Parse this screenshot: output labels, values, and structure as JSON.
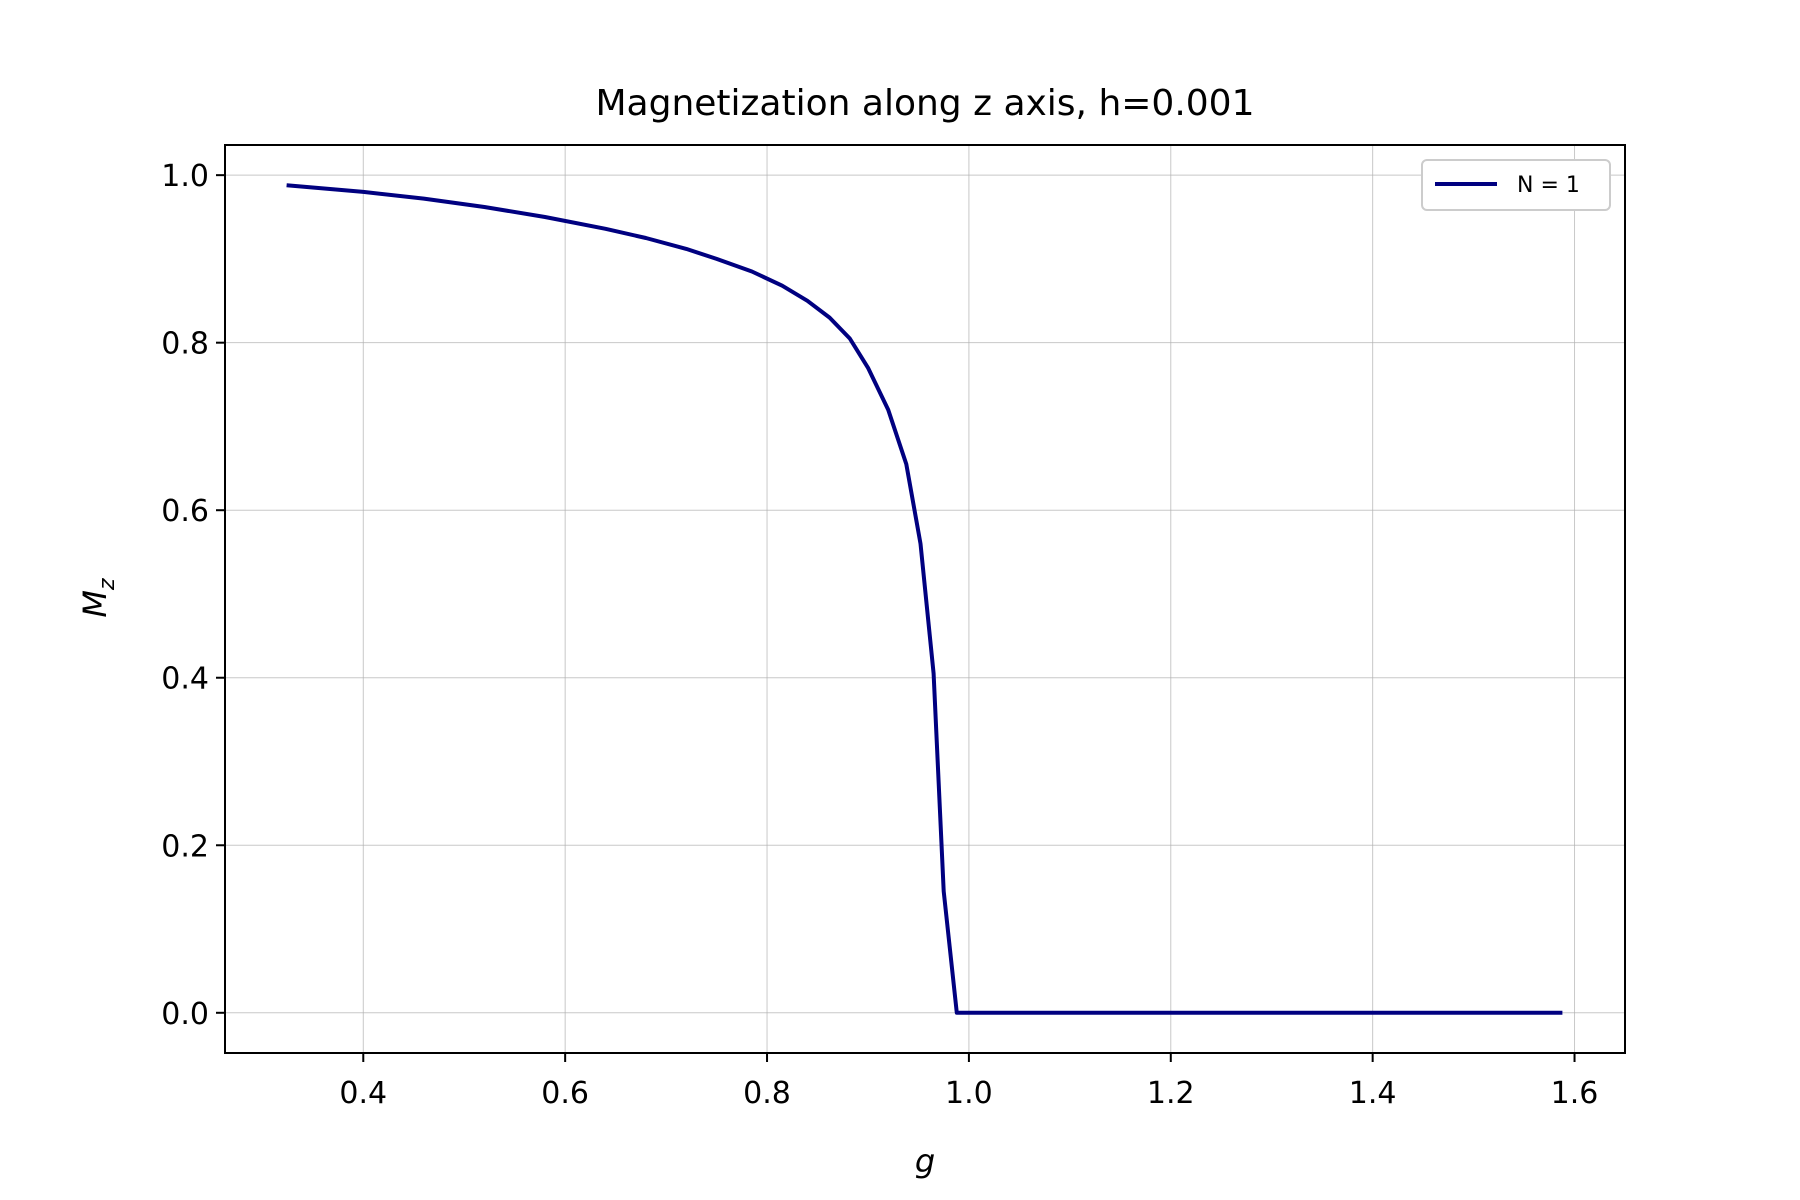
{
  "chart_data": {
    "type": "line",
    "title": "Magnetization along z axis, h=0.001",
    "xlabel": "g",
    "ylabel": "M",
    "ylabel_subscript": "z",
    "xlim": [
      0.263,
      1.65
    ],
    "ylim": [
      -0.048,
      1.036
    ],
    "xticks": [
      0.4,
      0.6,
      0.8,
      1.0,
      1.2,
      1.4,
      1.6
    ],
    "xtick_labels": [
      "0.4",
      "0.6",
      "0.8",
      "1.0",
      "1.2",
      "1.4",
      "1.6"
    ],
    "yticks": [
      0.0,
      0.2,
      0.4,
      0.6,
      0.8,
      1.0
    ],
    "ytick_labels": [
      "0.0",
      "0.2",
      "0.4",
      "0.6",
      "0.8",
      "1.0"
    ],
    "grid": true,
    "legend_position": "top-right",
    "series": [
      {
        "name": "N = 1",
        "color": "#000080",
        "x": [
          0.324,
          0.4,
          0.46,
          0.52,
          0.58,
          0.64,
          0.68,
          0.72,
          0.75,
          0.785,
          0.815,
          0.84,
          0.862,
          0.882,
          0.9,
          0.92,
          0.938,
          0.952,
          0.965,
          0.975,
          0.988,
          1.0,
          1.1,
          1.2,
          1.3,
          1.4,
          1.5,
          1.588
        ],
        "y": [
          0.988,
          0.98,
          0.972,
          0.962,
          0.95,
          0.936,
          0.925,
          0.912,
          0.9,
          0.885,
          0.868,
          0.85,
          0.83,
          0.805,
          0.77,
          0.72,
          0.655,
          0.56,
          0.405,
          0.145,
          0.0,
          0.0,
          0.0,
          0.0,
          0.0,
          0.0,
          0.0,
          0.0
        ]
      }
    ]
  }
}
